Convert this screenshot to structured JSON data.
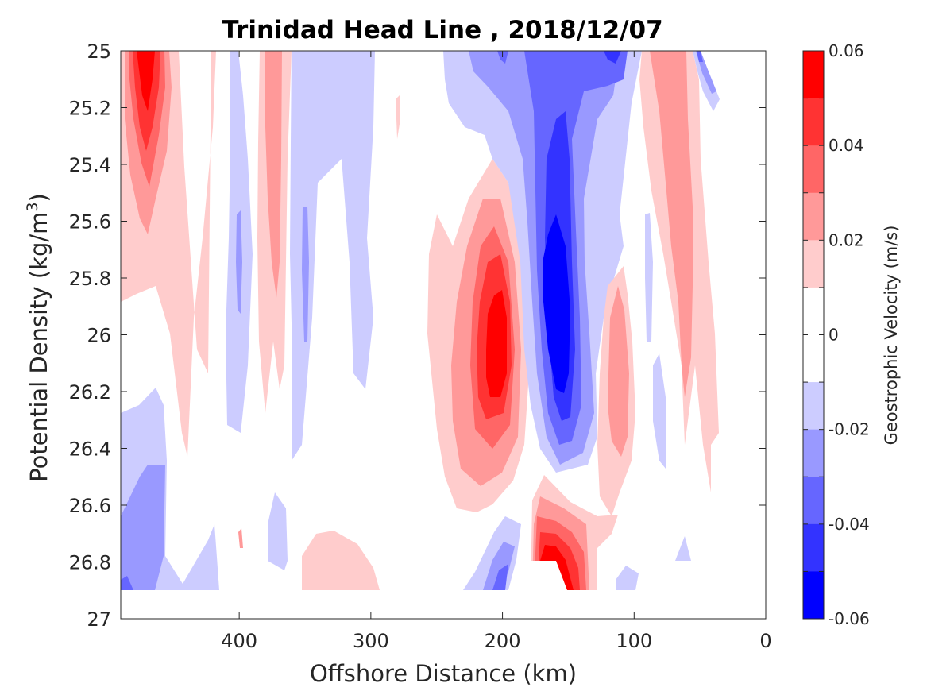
{
  "chart_data": {
    "type": "heatmap",
    "subtype": "filled-contour",
    "title": "Trinidad Head Line , 2018/12/07",
    "xlabel": "Offshore Distance (km)",
    "ylabel": "Potential Density (kg/m",
    "ylabel_sup": "3",
    "ylabel_close": ")",
    "xlim": [
      490,
      0
    ],
    "x_reversed": true,
    "ylim": [
      25,
      27
    ],
    "y_reversed": true,
    "x_ticks": [
      400,
      300,
      200,
      100,
      0
    ],
    "x_tick_labels": [
      "400",
      "300",
      "200",
      "100",
      "0"
    ],
    "y_ticks": [
      25,
      25.2,
      25.4,
      25.6,
      25.8,
      26,
      26.2,
      26.4,
      26.6,
      26.8,
      27
    ],
    "y_tick_labels": [
      "25",
      "25.2",
      "25.4",
      "25.6",
      "25.8",
      "26",
      "26.2",
      "26.4",
      "26.6",
      "26.8",
      "27"
    ],
    "colorbar": {
      "label": "Geostrophic Velocity (m/s)",
      "limits": [
        -0.06,
        0.06
      ],
      "level_step": 0.01,
      "ticks": [
        0.06,
        0.04,
        0.02,
        0,
        -0.02,
        -0.04,
        -0.06
      ],
      "tick_labels": [
        "0.06",
        "0.04",
        "0.02",
        "0",
        "-0.02",
        "-0.04",
        "-0.06"
      ],
      "colors_top_to_bottom": [
        "#ff0000",
        "#ff3333",
        "#ff6666",
        "#ff9999",
        "#ffcccc",
        "#ffffff",
        "#ffffff",
        "#ccccff",
        "#9999ff",
        "#6666ff",
        "#3333ff",
        "#0000ff"
      ]
    },
    "features": [
      {
        "sign": "positive",
        "peak": 0.06,
        "x": 470,
        "y": 25.05
      },
      {
        "sign": "negative",
        "peak": -0.01,
        "x": 400,
        "y": 25.8
      },
      {
        "sign": "positive",
        "peak": 0.03,
        "x": 370,
        "y": 25.5
      },
      {
        "sign": "negative",
        "peak": -0.02,
        "x": 350,
        "y": 25.7
      },
      {
        "sign": "positive",
        "peak": 0.06,
        "x": 205,
        "y": 26.05
      },
      {
        "sign": "negative",
        "peak": -0.06,
        "x": 155,
        "y": 25.9
      },
      {
        "sign": "positive",
        "peak": 0.06,
        "x": 160,
        "y": 26.85
      },
      {
        "sign": "positive",
        "peak": 0.03,
        "x": 115,
        "y": 26.2
      },
      {
        "sign": "positive",
        "peak": 0.03,
        "x": 60,
        "y": 25.6
      },
      {
        "sign": "negative",
        "peak": -0.03,
        "x": 470,
        "y": 26.8
      }
    ],
    "data_extent": {
      "x": [
        490,
        35
      ],
      "y": [
        25,
        26.9
      ]
    }
  }
}
